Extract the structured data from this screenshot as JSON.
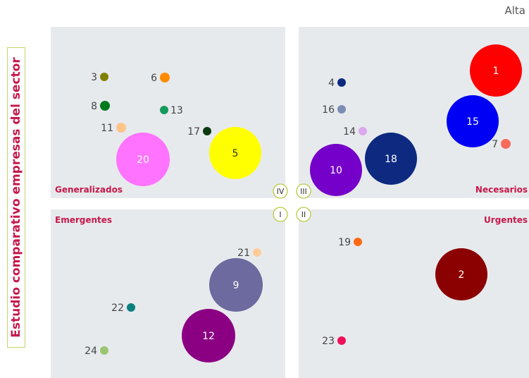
{
  "side_title": "Estudio comparativo empresas del sector",
  "corner_label": "Alta",
  "colors": {
    "panel": "#e7eaed",
    "quadrant_label": "#c5184a",
    "label_text": "#444444",
    "marker_stroke": "#b9c93e"
  },
  "chart_data": {
    "type": "bubble-matrix",
    "quadrant_labels": {
      "top_left": "Generalizados",
      "top_right": "Necesarios",
      "bottom_left": "Emergentes",
      "bottom_right": "Urgentes"
    },
    "quadrant_markers": {
      "top_left": "IV",
      "top_right": "III",
      "bottom_left": "I",
      "bottom_right": "II"
    },
    "bubbles": [
      {
        "label": "1",
        "quadrant": "top_right",
        "size": "large",
        "color": "#ff0000",
        "label_inside": true
      },
      {
        "label": "2",
        "quadrant": "bottom_right",
        "size": "large",
        "color": "#8b0000",
        "label_inside": true
      },
      {
        "label": "3",
        "quadrant": "top_left",
        "size": "small",
        "color": "#808000",
        "label_inside": false
      },
      {
        "label": "4",
        "quadrant": "top_right",
        "size": "small",
        "color": "#0d2a80",
        "label_inside": false
      },
      {
        "label": "5",
        "quadrant": "top_left",
        "size": "large",
        "color": "#ffff00",
        "label_inside": true
      },
      {
        "label": "6",
        "quadrant": "top_left",
        "size": "small",
        "color": "#ff8c00",
        "label_inside": false
      },
      {
        "label": "7",
        "quadrant": "top_right",
        "size": "small",
        "color": "#fa6b5c",
        "label_inside": false
      },
      {
        "label": "8",
        "quadrant": "top_left",
        "size": "small",
        "color": "#007a1f",
        "label_inside": false
      },
      {
        "label": "9",
        "quadrant": "bottom_left",
        "size": "large",
        "color": "#6c6a9e",
        "label_inside": true
      },
      {
        "label": "10",
        "quadrant": "top_right",
        "size": "large",
        "color": "#7500c9",
        "label_inside": true
      },
      {
        "label": "11",
        "quadrant": "top_left",
        "size": "small",
        "color": "#ffc48a",
        "label_inside": false
      },
      {
        "label": "12",
        "quadrant": "bottom_left",
        "size": "large",
        "color": "#8b0083",
        "label_inside": true
      },
      {
        "label": "13",
        "quadrant": "top_left",
        "size": "small",
        "color": "#149a5c",
        "label_inside": false
      },
      {
        "label": "14",
        "quadrant": "top_right",
        "size": "small",
        "color": "#dca8ef",
        "label_inside": false
      },
      {
        "label": "15",
        "quadrant": "top_right",
        "size": "large",
        "color": "#0000f5",
        "label_inside": true
      },
      {
        "label": "16",
        "quadrant": "top_right",
        "size": "small",
        "color": "#7c8db4",
        "label_inside": false
      },
      {
        "label": "17",
        "quadrant": "top_left",
        "size": "small",
        "color": "#0c3a0c",
        "label_inside": false
      },
      {
        "label": "18",
        "quadrant": "top_right",
        "size": "large",
        "color": "#0d2a80",
        "label_inside": true
      },
      {
        "label": "19",
        "quadrant": "bottom_right",
        "size": "small",
        "color": "#ff6a13",
        "label_inside": false
      },
      {
        "label": "20",
        "quadrant": "top_left",
        "size": "large",
        "color": "#ff73ff",
        "label_inside": true
      },
      {
        "label": "21",
        "quadrant": "bottom_left",
        "size": "small",
        "color": "#ffcc99",
        "label_inside": false
      },
      {
        "label": "22",
        "quadrant": "bottom_left",
        "size": "small",
        "color": "#0b8080",
        "label_inside": false
      },
      {
        "label": "23",
        "quadrant": "bottom_right",
        "size": "small",
        "color": "#f0105a",
        "label_inside": false
      },
      {
        "label": "24",
        "quadrant": "bottom_left",
        "size": "small",
        "color": "#9cc472",
        "label_inside": false
      }
    ]
  }
}
